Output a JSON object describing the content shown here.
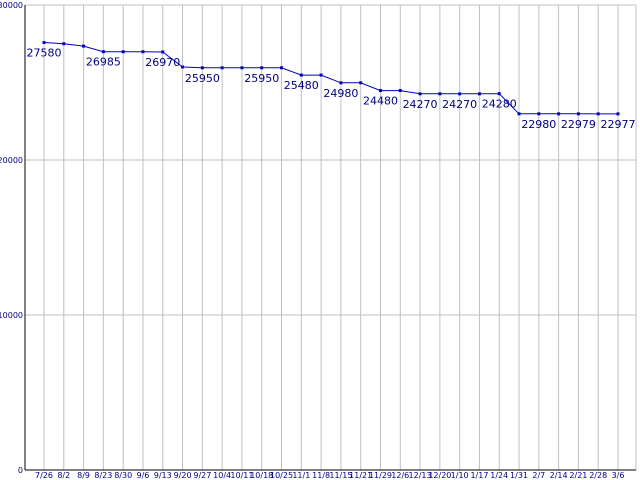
{
  "chart_data": {
    "type": "line",
    "title": "",
    "xlabel": "",
    "ylabel": "",
    "ylim": [
      0,
      30000
    ],
    "y_ticks": [
      0,
      10000,
      20000,
      30000
    ],
    "grid": true,
    "colors": {
      "line": "#0000cc",
      "grid": "#c0c0c0",
      "axis": "#000000",
      "text": "#000080"
    },
    "categories": [
      "7/26",
      "8/2",
      "8/9",
      "8/23",
      "8/30",
      "9/6",
      "9/13",
      "9/20",
      "9/27",
      "10/4",
      "10/11",
      "10/18",
      "10/25",
      "11/1",
      "11/8",
      "11/15",
      "11/21",
      "11/29",
      "12/6",
      "12/13",
      "12/20",
      "1/10",
      "1/17",
      "1/24",
      "1/31",
      "2/7",
      "2/14",
      "2/21",
      "2/28",
      "3/6"
    ],
    "x_tick_labels": [
      "7/26",
      "8/2",
      "8/9",
      "8/23",
      "8/30",
      "9/6",
      "9/13",
      "9/20",
      "9/27",
      "10/4",
      "10/11",
      "10/18",
      "10/25",
      "11/1",
      "11/8",
      "11/15",
      "11/21",
      "11/29",
      "12/6",
      "12/13",
      "12/20",
      "1/10",
      "1/17",
      "1/24",
      "1/31",
      "2/7",
      "2/14",
      "2/21",
      "2/28",
      "3/6"
    ],
    "values": [
      27580,
      27500,
      27350,
      26985,
      26985,
      26985,
      26970,
      26000,
      25950,
      25950,
      25950,
      25950,
      25950,
      25480,
      25480,
      24980,
      24980,
      24480,
      24480,
      24270,
      24270,
      24270,
      24270,
      24280,
      22980,
      22980,
      22979,
      22979,
      22977,
      22977
    ],
    "data_labels": [
      {
        "index": 0,
        "text": "27580"
      },
      {
        "index": 3,
        "text": "26985"
      },
      {
        "index": 6,
        "text": "26970"
      },
      {
        "index": 8,
        "text": "25950"
      },
      {
        "index": 11,
        "text": "25950"
      },
      {
        "index": 13,
        "text": "25480"
      },
      {
        "index": 15,
        "text": "24980"
      },
      {
        "index": 17,
        "text": "24480"
      },
      {
        "index": 19,
        "text": "24270"
      },
      {
        "index": 21,
        "text": "24270"
      },
      {
        "index": 23,
        "text": "24280"
      },
      {
        "index": 25,
        "text": "22980"
      },
      {
        "index": 27,
        "text": "22979"
      },
      {
        "index": 29,
        "text": "22977"
      }
    ]
  }
}
